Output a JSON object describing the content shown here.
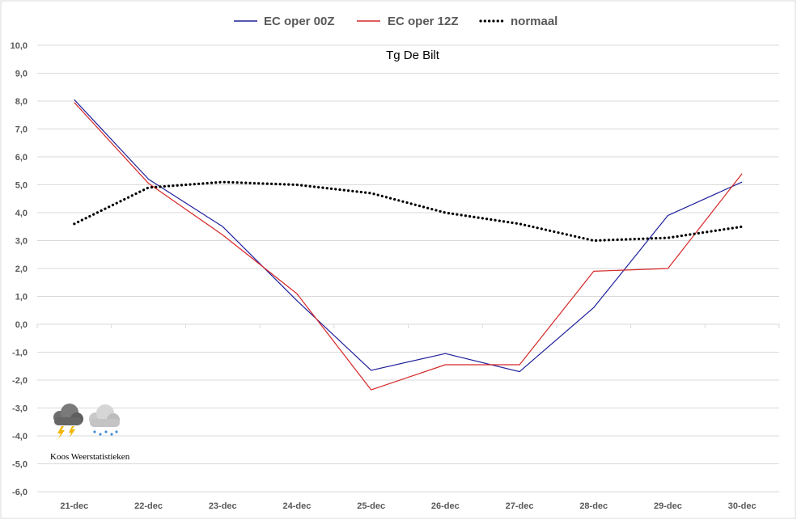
{
  "chart_data": {
    "type": "line",
    "title": "Tg De Bilt",
    "categories": [
      "21-dec",
      "22-dec",
      "23-dec",
      "24-dec",
      "25-dec",
      "26-dec",
      "27-dec",
      "28-dec",
      "29-dec",
      "30-dec"
    ],
    "y_ticks": [
      "10,0",
      "9,0",
      "8,0",
      "7,0",
      "6,0",
      "5,0",
      "4,0",
      "3,0",
      "2,0",
      "1,0",
      "0,0",
      "-1,0",
      "-2,0",
      "-3,0",
      "-4,0",
      "-5,0",
      "-6,0"
    ],
    "ylim": [
      -6,
      10
    ],
    "grid": true,
    "legend_position": "top",
    "series": [
      {
        "name": "EC oper 00Z",
        "color": "#1f1f9c",
        "style": "solid",
        "values": [
          8.05,
          5.2,
          3.5,
          0.85,
          -1.65,
          -1.05,
          -1.7,
          0.6,
          3.9,
          5.1
        ]
      },
      {
        "name": "EC oper 12Z",
        "color": "#d62728",
        "style": "solid",
        "values": [
          7.95,
          5.05,
          3.2,
          1.1,
          -2.35,
          -1.45,
          -1.45,
          1.9,
          2.0,
          5.4
        ]
      },
      {
        "name": "normaal",
        "color": "#000000",
        "style": "dotted",
        "values": [
          3.6,
          4.9,
          5.1,
          5.0,
          4.7,
          4.0,
          3.6,
          3.0,
          3.1,
          3.5
        ]
      }
    ]
  },
  "watermark": {
    "text": "Koos Weerstatistieken",
    "icons": [
      "thunderstorm-cloud-icon",
      "snow-cloud-icon"
    ]
  }
}
